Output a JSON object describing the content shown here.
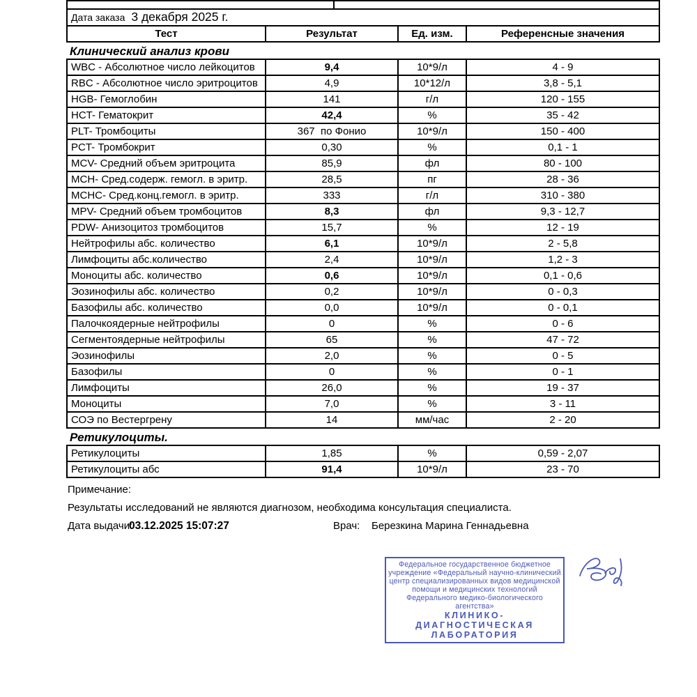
{
  "order": {
    "label": "Дата заказа",
    "date": "3 декабря 2025 г."
  },
  "table": {
    "headers": [
      "Тест",
      "Результат",
      "Ед. изм.",
      "Референсные значения"
    ]
  },
  "sections": [
    {
      "title": "Клинический анализ крови",
      "rows": [
        {
          "name": "WBC - Абсолютное число лейкоцитов",
          "result": "9,4",
          "bold": true,
          "unit": "10*9/л",
          "ref": "4 - 9"
        },
        {
          "name": "RBC - Абсолютное число эритроцитов",
          "result": "4,9",
          "bold": false,
          "unit": "10*12/л",
          "ref": "3,8 - 5,1"
        },
        {
          "name": "HGB- Гемоглобин",
          "result": "141",
          "bold": false,
          "unit": "г/л",
          "ref": "120 - 155"
        },
        {
          "name": "HCT- Гематокрит",
          "result": "42,4",
          "bold": true,
          "unit": "%",
          "ref": "35 - 42"
        },
        {
          "name": "PLT- Тромбоциты",
          "result": "367  по Фонио",
          "bold": false,
          "unit": "10*9/л",
          "ref": "150 - 400"
        },
        {
          "name": "PCT- Тромбокрит",
          "result": "0,30",
          "bold": false,
          "unit": "%",
          "ref": "0,1 - 1"
        },
        {
          "name": "MCV- Средний объем эритроцита",
          "result": "85,9",
          "bold": false,
          "unit": "фл",
          "ref": "80 - 100"
        },
        {
          "name": "MCH- Сред.содерж. гемогл. в эритр.",
          "result": "28,5",
          "bold": false,
          "unit": "пг",
          "ref": "28 - 36"
        },
        {
          "name": "MCHC- Сред.конц.гемогл. в эритр.",
          "result": "333",
          "bold": false,
          "unit": "г/л",
          "ref": "310 - 380"
        },
        {
          "name": "MPV- Средний объем тромбоцитов",
          "result": "8,3",
          "bold": true,
          "unit": "фл",
          "ref": "9,3 - 12,7"
        },
        {
          "name": "PDW- Анизоцитоз тромбоцитов",
          "result": "15,7",
          "bold": false,
          "unit": "%",
          "ref": "12 - 19"
        },
        {
          "name": "Нейтрофилы абс. количество",
          "result": "6,1",
          "bold": true,
          "unit": "10*9/л",
          "ref": "2 - 5,8"
        },
        {
          "name": "Лимфоциты абс.количество",
          "result": "2,4",
          "bold": false,
          "unit": "10*9/л",
          "ref": "1,2 - 3"
        },
        {
          "name": "Моноциты абс. количество",
          "result": "0,6",
          "bold": true,
          "unit": "10*9/л",
          "ref": "0,1 - 0,6"
        },
        {
          "name": "Эозинофилы абс. количество",
          "result": "0,2",
          "bold": false,
          "unit": "10*9/л",
          "ref": "0 - 0,3"
        },
        {
          "name": "Базофилы абс. количество",
          "result": "0,0",
          "bold": false,
          "unit": "10*9/л",
          "ref": "0 - 0,1"
        },
        {
          "name": "Палочкоядерные нейтрофилы",
          "result": "0",
          "bold": false,
          "unit": "%",
          "ref": "0 - 6"
        },
        {
          "name": "Сегментоядерные нейтрофилы",
          "result": "65",
          "bold": false,
          "unit": "%",
          "ref": "47 - 72"
        },
        {
          "name": "Эозинофилы",
          "result": "2,0",
          "bold": false,
          "unit": "%",
          "ref": "0 - 5"
        },
        {
          "name": "Базофилы",
          "result": "0",
          "bold": false,
          "unit": "%",
          "ref": "0 - 1"
        },
        {
          "name": "Лимфоциты",
          "result": "26,0",
          "bold": false,
          "unit": "%",
          "ref": "19 - 37"
        },
        {
          "name": "Моноциты",
          "result": "7,0",
          "bold": false,
          "unit": "%",
          "ref": "3 - 11"
        },
        {
          "name": "СОЭ по Вестергрену",
          "result": "14",
          "bold": false,
          "unit": "мм/час",
          "ref": "2 - 20"
        }
      ]
    },
    {
      "title": "Ретикулоциты.",
      "rows": [
        {
          "name": "Ретикулоциты",
          "result": "1,85",
          "bold": false,
          "unit": "%",
          "ref": "0,59 - 2,07"
        },
        {
          "name": "Ретикулоциты абс",
          "result": "91,4",
          "bold": true,
          "unit": "10*9/л",
          "ref": "23 - 70"
        }
      ]
    }
  ],
  "footer": {
    "note_label": "Примечание:",
    "note_text": "Результаты исследований не являются диагнозом, необходима консультация специалиста.",
    "issue_label": "Дата выдачи:",
    "issue_value": "03.12.2025 15:07:27",
    "doctor_label": "Врач:",
    "doctor_name": "Березкина Марина Геннадьевна"
  },
  "stamp": {
    "color": "#4a58b7",
    "lines": [
      "Федеральное государственное бюджетное",
      "учреждение «Федеральный научно-клинический",
      "центр специализированных видов медицинской",
      "помощи и медицинских технологий",
      "Федерального медико-биологического агентства»",
      "КЛИНИКО-ДИАГНОСТИЧЕСКАЯ",
      "ЛАБОРАТОРИЯ"
    ]
  }
}
